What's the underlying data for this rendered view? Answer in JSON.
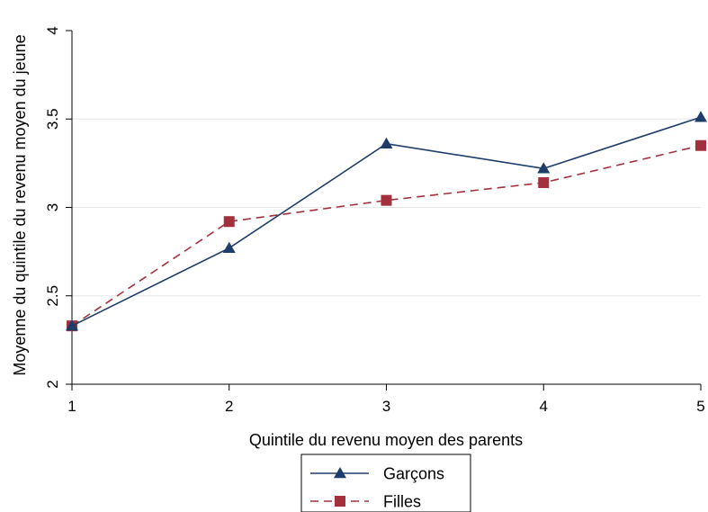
{
  "chart_data": {
    "type": "line",
    "x": [
      1,
      2,
      3,
      4,
      5
    ],
    "xlabel": "Quintile du revenu moyen des parents",
    "ylabel": "Moyenne du quintile du revenu moyen du jeune",
    "xlim": [
      1,
      5
    ],
    "ylim": [
      2,
      4
    ],
    "x_ticks": [
      "1",
      "2",
      "3",
      "4",
      "5"
    ],
    "y_ticks": [
      "2",
      "2.5",
      "3",
      "3.5",
      "4"
    ],
    "grid": "horizontal",
    "legend_position": "bottom",
    "series": [
      {
        "name": "Garçons",
        "values": [
          2.33,
          2.77,
          3.36,
          3.22,
          3.51
        ],
        "color": "#1f3d6b",
        "line_style": "solid",
        "marker": "triangle"
      },
      {
        "name": "Filles",
        "values": [
          2.33,
          2.92,
          3.04,
          3.14,
          3.35
        ],
        "color": "#a3313d",
        "line_style": "dashed",
        "marker": "square"
      }
    ]
  }
}
